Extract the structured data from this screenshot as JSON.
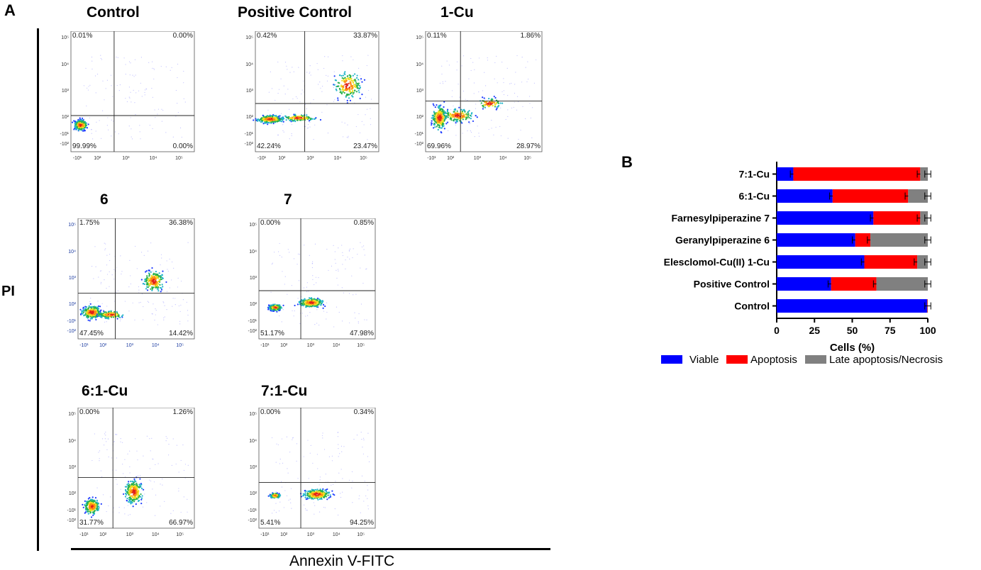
{
  "panel_a_label": "A",
  "panel_b_label": "B",
  "y_axis_label": "PI",
  "x_axis_label": "Annexin V-FITC",
  "facs_plots": [
    {
      "id": "control",
      "title": "Control",
      "q_ul": "0.01%",
      "q_ur": "0.00%",
      "q_ll": "99.99%",
      "q_lr": "0.00%"
    },
    {
      "id": "positive-control",
      "title": "Positive Control",
      "q_ul": "0.42%",
      "q_ur": "33.87%",
      "q_ll": "42.24%",
      "q_lr": "23.47%"
    },
    {
      "id": "1cu",
      "title": "1-Cu",
      "q_ul": "0.11%",
      "q_ur": "1.86%",
      "q_ll": "69.96%",
      "q_lr": "28.97%"
    },
    {
      "id": "6",
      "title": "6",
      "q_ul": "1.75%",
      "q_ur": "36.38%",
      "q_ll": "47.45%",
      "q_lr": "14.42%"
    },
    {
      "id": "7",
      "title": "7",
      "q_ul": "0.00%",
      "q_ur": "0.85%",
      "q_ll": "51.17%",
      "q_lr": "47.98%"
    },
    {
      "id": "6-1cu",
      "title": "6:1-Cu",
      "q_ul": "0.00%",
      "q_ur": "1.26%",
      "q_ll": "31.77%",
      "q_lr": "66.97%"
    },
    {
      "id": "7-1cu",
      "title": "7:1-Cu",
      "q_ul": "0.00%",
      "q_ur": "0.34%",
      "q_ll": "5.41%",
      "q_lr": "94.25%"
    }
  ],
  "facs_tick_labels": {
    "y": [
      "10⁵",
      "10⁴",
      "10³",
      "10²",
      "-10¹",
      "-10²"
    ],
    "x": [
      "-10¹",
      "10²",
      "10³",
      "10⁴",
      "10⁵"
    ]
  },
  "chart_data": {
    "type": "bar",
    "orientation": "horizontal",
    "stacked": true,
    "title": "",
    "xlabel": "Cells (%)",
    "ylabel": "",
    "xlim": [
      0,
      100
    ],
    "xticks": [
      "0",
      "25",
      "50",
      "75",
      "100"
    ],
    "categories": [
      "7:1-Cu",
      "6:1-Cu",
      "Farnesylpiperazine 7",
      "Geranylpiperazine 6",
      "Elesclomol-Cu(II) 1-Cu",
      "Positive Control",
      "Control"
    ],
    "series": [
      {
        "name": "Viable",
        "color": "#0000ff",
        "values": [
          11,
          37,
          64,
          52,
          58,
          36,
          99.5
        ],
        "errors": [
          2,
          2,
          2,
          2,
          2,
          2,
          0
        ]
      },
      {
        "name": "Apoptosis",
        "color": "#ff0000",
        "values": [
          84,
          50,
          31,
          10,
          35,
          30,
          0.3
        ],
        "errors": [
          2,
          2,
          2,
          2,
          2,
          2,
          0
        ]
      },
      {
        "name": "Late apoptosis/Necrosis",
        "color": "#808080",
        "values": [
          5,
          13,
          5,
          38,
          7,
          34,
          0.2
        ],
        "errors": [
          2,
          2,
          2,
          2,
          2,
          2,
          2
        ]
      }
    ],
    "legend": [
      "Viable",
      "Apoptosis",
      "Late apoptosis/Necrosis"
    ],
    "legend_position": "bottom"
  }
}
